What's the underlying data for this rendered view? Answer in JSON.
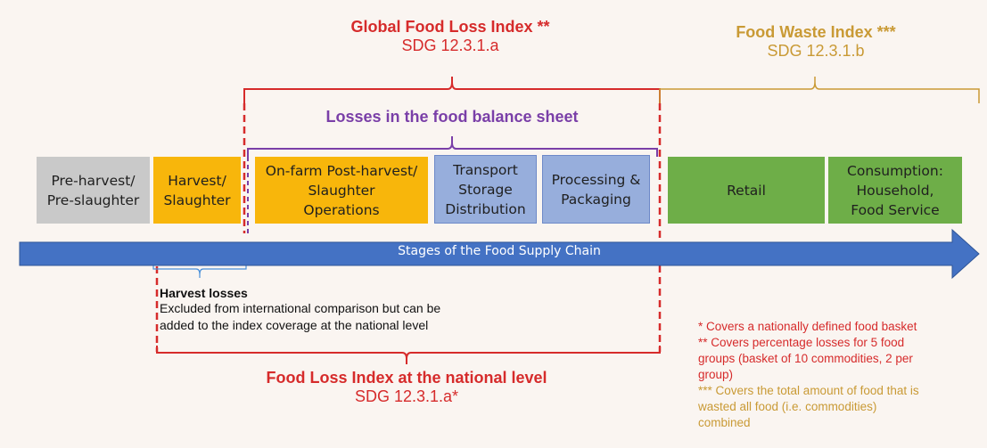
{
  "headers": {
    "global_loss_title": "Global Food Loss Index **",
    "global_loss_sdg": "SDG 12.3.1.a",
    "waste_title": "Food Waste Index ***",
    "waste_sdg": "SDG 12.3.1.b",
    "balance_sheet": "Losses in the food balance sheet",
    "national_title": "Food Loss Index at the national level",
    "national_sdg": "SDG 12.3.1.a*"
  },
  "stages": [
    {
      "label": "Pre-harvest/\nPre-slaughter"
    },
    {
      "label": "Harvest/\nSlaughter"
    },
    {
      "label": "On-farm Post-harvest/\nSlaughter\nOperations"
    },
    {
      "label": "Transport\nStorage\nDistribution"
    },
    {
      "label": "Processing &\nPackaging"
    },
    {
      "label": "Retail"
    },
    {
      "label": "Consumption:\nHousehold,\nFood Service"
    }
  ],
  "arrow_label": "Stages of the Food Supply Chain",
  "harvest_losses": {
    "title": "Harvest losses",
    "note_line1": "Excluded from international comparison but can be",
    "note_line2": "added to the index coverage at the national level"
  },
  "footnotes": {
    "f1": "* Covers a nationally defined food basket",
    "f2_line1": "** Covers percentage losses for 5 food",
    "f2_line2": "groups (basket of 10 commodities, 2 per",
    "f2_line3": "group)",
    "f3_line1": "*** Covers the total amount of food that is",
    "f3_line2": "wasted all food (i.e. commodities)",
    "f3_line3": "combined"
  },
  "colors": {
    "red": "#d62b2b",
    "gold": "#c99a35",
    "purple": "#7a3fa8",
    "arrow": "#4472c4",
    "harvest_bracket": "#4a90d9"
  }
}
